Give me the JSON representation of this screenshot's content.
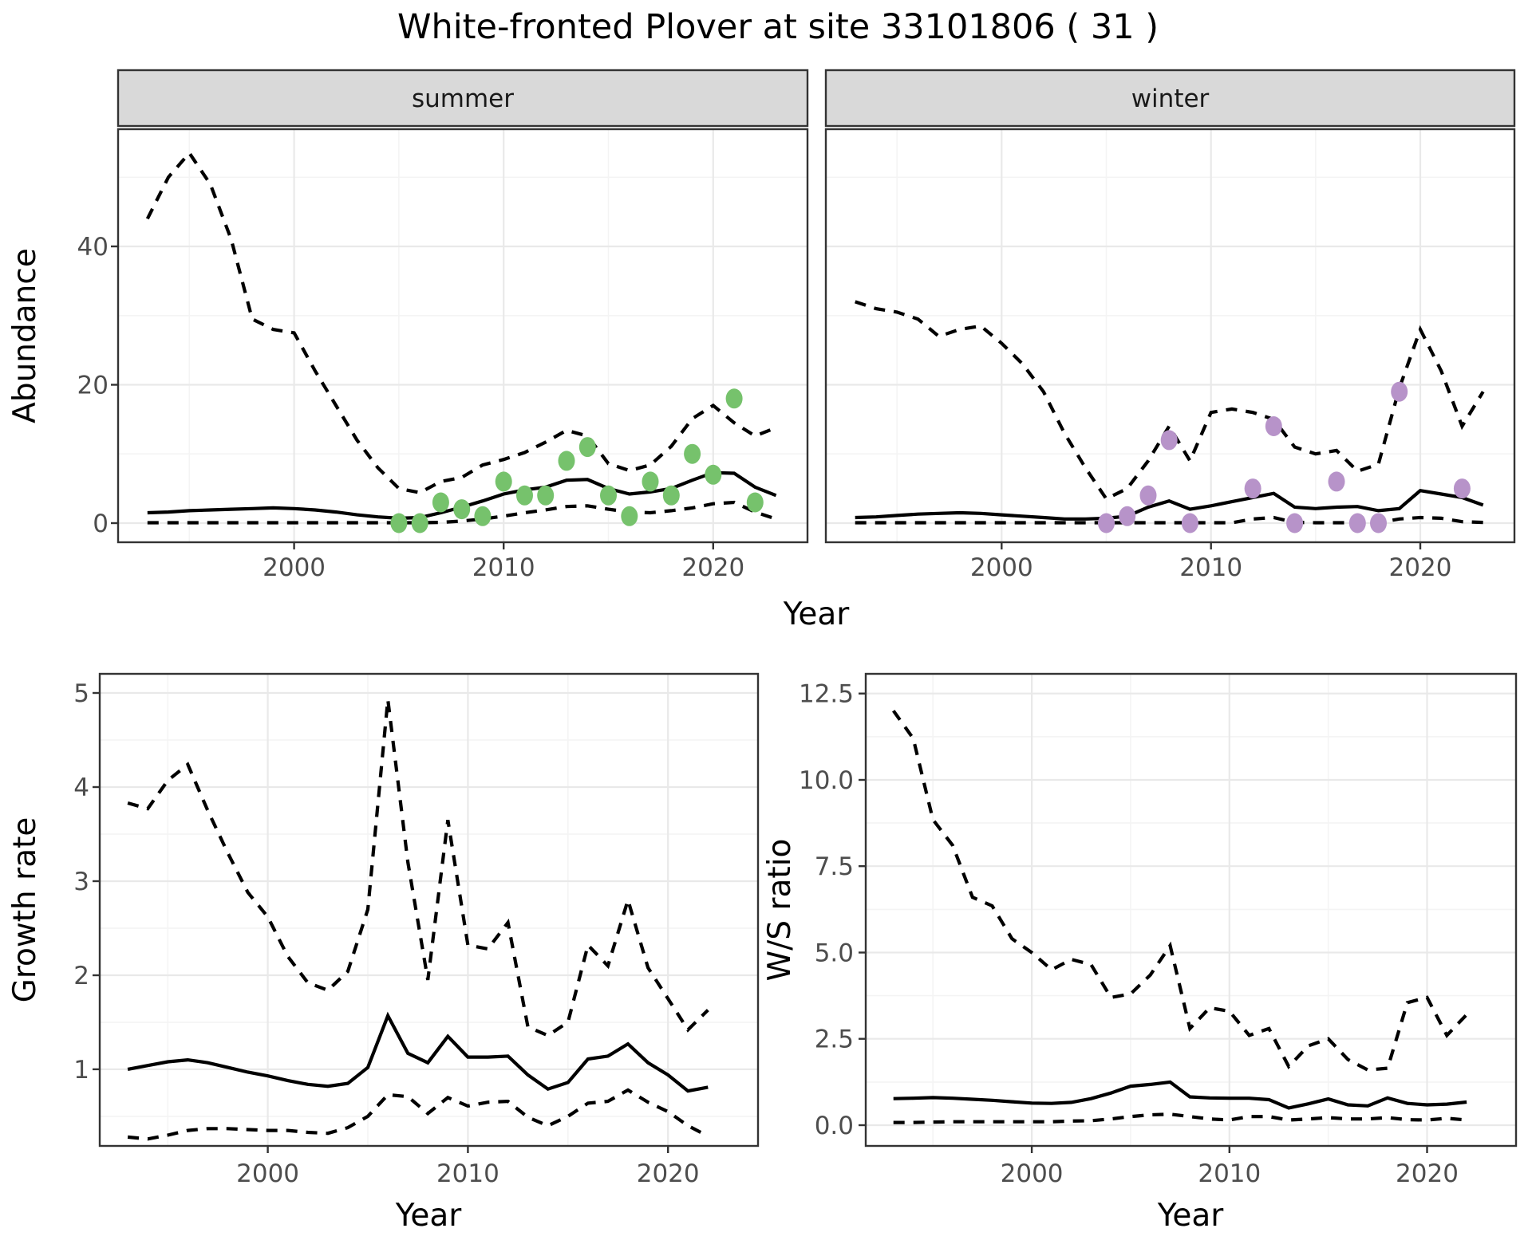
{
  "title": "White-fronted Plover at site 33101806 ( 31 )",
  "colors": {
    "summer_point": "#76c26c",
    "winter_point": "#b793c9",
    "line": "#000000",
    "strip_bg": "#d9d9d9",
    "panel_border": "#333333",
    "grid_major": "#e9e9e9",
    "grid_minor": "#f4f4f4",
    "tick_label": "#4d4d4d"
  },
  "facets": [
    "summer",
    "winter"
  ],
  "axis_titles": {
    "top_y": "Abundance",
    "top_x": "Year",
    "growth_y": "Growth rate",
    "growth_x": "Year",
    "ws_y": "W/S ratio",
    "ws_x": "Year"
  },
  "chart_data": [
    {
      "id": "abundance-summer",
      "type": "line",
      "facet": "summer",
      "xlabel": "Year",
      "ylabel": "Abundance",
      "xlim": [
        1991.6,
        2024.5
      ],
      "ylim": [
        -2.77,
        56.95
      ],
      "xticks": {
        "major": [
          2000,
          2010,
          2020
        ],
        "minor": [
          1995,
          2005,
          2015
        ],
        "labels": [
          "2000",
          "2010",
          "2020"
        ]
      },
      "yticks": {
        "major": [
          0,
          20,
          40
        ],
        "minor": [
          10,
          30,
          50
        ],
        "labels": [
          "0",
          "20",
          "40"
        ]
      },
      "years": [
        1993,
        1994,
        1995,
        1996,
        1997,
        1998,
        1999,
        2000,
        2001,
        2002,
        2003,
        2004,
        2005,
        2006,
        2007,
        2008,
        2009,
        2010,
        2011,
        2012,
        2013,
        2014,
        2015,
        2016,
        2017,
        2018,
        2019,
        2020,
        2021,
        2022,
        2023
      ],
      "series": [
        {
          "name": "upper-ci",
          "style": "dashed",
          "values": [
            44,
            50,
            53.5,
            49,
            41,
            29.5,
            28,
            27.5,
            22,
            17,
            12,
            8,
            5,
            4.4,
            6,
            6.6,
            8.4,
            9.2,
            10.2,
            11.7,
            13.4,
            12.6,
            8.6,
            7.6,
            8.4,
            11.1,
            15.1,
            17,
            14.5,
            12.6,
            13.8
          ]
        },
        {
          "name": "median",
          "style": "solid",
          "values": [
            1.5,
            1.6,
            1.8,
            1.9,
            2.0,
            2.1,
            2.2,
            2.1,
            1.9,
            1.6,
            1.2,
            0.9,
            0.7,
            0.8,
            1.5,
            2.3,
            3.2,
            4.2,
            4.8,
            5.2,
            6.2,
            6.3,
            5.0,
            4.2,
            4.5,
            5.0,
            6.2,
            7.3,
            7.2,
            5.2,
            4.0
          ]
        },
        {
          "name": "lower-ci",
          "style": "dashed",
          "values": [
            0.05,
            0.05,
            0.05,
            0.05,
            0.05,
            0.05,
            0.05,
            0.05,
            0.05,
            0.05,
            0.05,
            0.05,
            0.05,
            0.05,
            0.1,
            0.3,
            0.6,
            1.0,
            1.5,
            1.9,
            2.4,
            2.5,
            2.0,
            1.6,
            1.5,
            1.8,
            2.2,
            2.8,
            3.0,
            1.6,
            0.6
          ]
        }
      ],
      "points": {
        "color_key": "summer_point",
        "years": [
          2005,
          2006,
          2007,
          2008,
          2009,
          2010,
          2011,
          2012,
          2013,
          2014,
          2015,
          2016,
          2017,
          2018,
          2019,
          2020,
          2021,
          2022
        ],
        "values": [
          0,
          0,
          3,
          2,
          1,
          6,
          4,
          4,
          9,
          11,
          4,
          1,
          6,
          4,
          10,
          7,
          18,
          3
        ]
      }
    },
    {
      "id": "abundance-winter",
      "type": "line",
      "facet": "winter",
      "xlabel": "Year",
      "ylabel": "Abundance",
      "xlim": [
        1991.6,
        2024.5
      ],
      "ylim": [
        -2.77,
        56.95
      ],
      "xticks": {
        "major": [
          2000,
          2010,
          2020
        ],
        "minor": [
          1995,
          2005,
          2015
        ],
        "labels": [
          "2000",
          "2010",
          "2020"
        ]
      },
      "yticks": {
        "major": [
          0,
          20,
          40
        ],
        "minor": [
          10,
          30,
          50
        ],
        "labels": [
          "0",
          "20",
          "40"
        ]
      },
      "years": [
        1993,
        1994,
        1995,
        1996,
        1997,
        1998,
        1999,
        2000,
        2001,
        2002,
        2003,
        2004,
        2005,
        2006,
        2007,
        2008,
        2009,
        2010,
        2011,
        2012,
        2013,
        2014,
        2015,
        2016,
        2017,
        2018,
        2019,
        2020,
        2021,
        2022,
        2023
      ],
      "series": [
        {
          "name": "upper-ci",
          "style": "dashed",
          "values": [
            32,
            31,
            30.5,
            29.5,
            27,
            28,
            28.5,
            26,
            23,
            19,
            13,
            8,
            3.5,
            5,
            9,
            14,
            9,
            16,
            16.5,
            16,
            15,
            11,
            10,
            10.5,
            7.5,
            8.5,
            19.5,
            28,
            22,
            14,
            19
          ]
        },
        {
          "name": "median",
          "style": "solid",
          "values": [
            0.8,
            0.9,
            1.1,
            1.3,
            1.4,
            1.5,
            1.4,
            1.2,
            1.0,
            0.8,
            0.6,
            0.6,
            0.7,
            1.0,
            2.3,
            3.2,
            2.0,
            2.5,
            3.1,
            3.7,
            4.3,
            2.3,
            2.1,
            2.3,
            2.4,
            1.8,
            2.1,
            4.7,
            4.2,
            3.7,
            2.6
          ]
        },
        {
          "name": "lower-ci",
          "style": "dashed",
          "values": [
            0.05,
            0.05,
            0.05,
            0.05,
            0.05,
            0.05,
            0.05,
            0.05,
            0.05,
            0.05,
            0.05,
            0.05,
            0.05,
            0.05,
            0.05,
            0.05,
            0.05,
            0.05,
            0.05,
            0.6,
            0.8,
            0.1,
            0.05,
            0.05,
            0.05,
            0.05,
            0.6,
            0.8,
            0.7,
            0.2,
            0.1
          ]
        }
      ],
      "points": {
        "color_key": "winter_point",
        "years": [
          2005,
          2006,
          2007,
          2008,
          2009,
          2012,
          2013,
          2014,
          2016,
          2017,
          2018,
          2019,
          2022
        ],
        "values": [
          0,
          1,
          4,
          12,
          0,
          5,
          14,
          0,
          6,
          0,
          0,
          19,
          5
        ]
      }
    },
    {
      "id": "growth-rate",
      "type": "line",
      "facet": null,
      "xlabel": "Year",
      "ylabel": "Growth rate",
      "xlim": [
        1991.6,
        2024.5
      ],
      "ylim": [
        0.186,
        5.203
      ],
      "xticks": {
        "major": [
          2000,
          2010,
          2020
        ],
        "minor": [
          1995,
          2005,
          2015
        ],
        "labels": [
          "2000",
          "2010",
          "2020"
        ]
      },
      "yticks": {
        "major": [
          1,
          2,
          3,
          4,
          5
        ],
        "minor": [
          0.5,
          1.5,
          2.5,
          3.5,
          4.5
        ],
        "labels": [
          "1",
          "2",
          "3",
          "4",
          "5"
        ]
      },
      "years": [
        1993,
        1994,
        1995,
        1996,
        1997,
        1998,
        1999,
        2000,
        2001,
        2002,
        2003,
        2004,
        2005,
        2006,
        2007,
        2008,
        2009,
        2010,
        2011,
        2012,
        2013,
        2014,
        2015,
        2016,
        2017,
        2018,
        2019,
        2020,
        2021,
        2022
      ],
      "series": [
        {
          "name": "upper-ci",
          "style": "dashed",
          "values": [
            3.83,
            3.77,
            4.07,
            4.24,
            3.75,
            3.3,
            2.88,
            2.62,
            2.2,
            1.92,
            1.84,
            2.04,
            2.7,
            4.93,
            3.2,
            1.95,
            3.65,
            2.32,
            2.28,
            2.56,
            1.45,
            1.36,
            1.5,
            2.32,
            2.1,
            2.8,
            2.08,
            1.75,
            1.42,
            1.63
          ]
        },
        {
          "name": "median",
          "style": "solid",
          "values": [
            1.0,
            1.04,
            1.08,
            1.1,
            1.07,
            1.02,
            0.97,
            0.93,
            0.88,
            0.84,
            0.82,
            0.85,
            1.02,
            1.57,
            1.17,
            1.07,
            1.35,
            1.13,
            1.13,
            1.14,
            0.94,
            0.79,
            0.86,
            1.11,
            1.14,
            1.27,
            1.07,
            0.94,
            0.77,
            0.81
          ]
        },
        {
          "name": "lower-ci",
          "style": "dashed",
          "values": [
            0.28,
            0.26,
            0.3,
            0.35,
            0.37,
            0.37,
            0.36,
            0.35,
            0.35,
            0.33,
            0.32,
            0.38,
            0.5,
            0.73,
            0.71,
            0.53,
            0.7,
            0.61,
            0.65,
            0.66,
            0.49,
            0.4,
            0.5,
            0.64,
            0.66,
            0.78,
            0.65,
            0.55,
            0.4,
            0.29
          ]
        }
      ],
      "points": null
    },
    {
      "id": "ws-ratio",
      "type": "line",
      "facet": null,
      "xlabel": "Year",
      "ylabel": "W/S ratio",
      "xlim": [
        1991.6,
        2024.5
      ],
      "ylim": [
        -0.6,
        13.07
      ],
      "xticks": {
        "major": [
          2000,
          2010,
          2020
        ],
        "minor": [
          1995,
          2005,
          2015
        ],
        "labels": [
          "2000",
          "2010",
          "2020"
        ]
      },
      "yticks": {
        "major": [
          0,
          2.5,
          5,
          7.5,
          10,
          12.5
        ],
        "minor": [
          1.25,
          3.75,
          6.25,
          8.75,
          11.25
        ],
        "labels": [
          "0.0",
          "2.5",
          "5.0",
          "7.5",
          "10.0",
          "12.5"
        ]
      },
      "years": [
        1993,
        1994,
        1995,
        1996,
        1997,
        1998,
        1999,
        2000,
        2001,
        2002,
        2003,
        2004,
        2005,
        2006,
        2007,
        2008,
        2009,
        2010,
        2011,
        2012,
        2013,
        2014,
        2015,
        2016,
        2017,
        2018,
        2019,
        2020,
        2021,
        2022
      ],
      "series": [
        {
          "name": "upper-ci",
          "style": "dashed",
          "values": [
            12.0,
            11.2,
            8.85,
            8.1,
            6.6,
            6.35,
            5.4,
            5.0,
            4.5,
            4.8,
            4.65,
            3.7,
            3.8,
            4.35,
            5.2,
            2.8,
            3.4,
            3.3,
            2.6,
            2.8,
            1.7,
            2.3,
            2.5,
            1.9,
            1.6,
            1.65,
            3.55,
            3.7,
            2.6,
            3.2
          ]
        },
        {
          "name": "median",
          "style": "solid",
          "values": [
            0.77,
            0.78,
            0.8,
            0.78,
            0.75,
            0.72,
            0.68,
            0.64,
            0.63,
            0.66,
            0.77,
            0.93,
            1.13,
            1.18,
            1.25,
            0.82,
            0.79,
            0.78,
            0.78,
            0.74,
            0.5,
            0.62,
            0.76,
            0.59,
            0.56,
            0.79,
            0.63,
            0.59,
            0.61,
            0.67
          ]
        },
        {
          "name": "lower-ci",
          "style": "dashed",
          "values": [
            0.08,
            0.08,
            0.09,
            0.1,
            0.1,
            0.1,
            0.1,
            0.1,
            0.1,
            0.12,
            0.13,
            0.18,
            0.25,
            0.3,
            0.32,
            0.25,
            0.18,
            0.15,
            0.25,
            0.25,
            0.15,
            0.18,
            0.22,
            0.18,
            0.18,
            0.22,
            0.16,
            0.15,
            0.2,
            0.15
          ]
        }
      ],
      "points": null
    }
  ]
}
